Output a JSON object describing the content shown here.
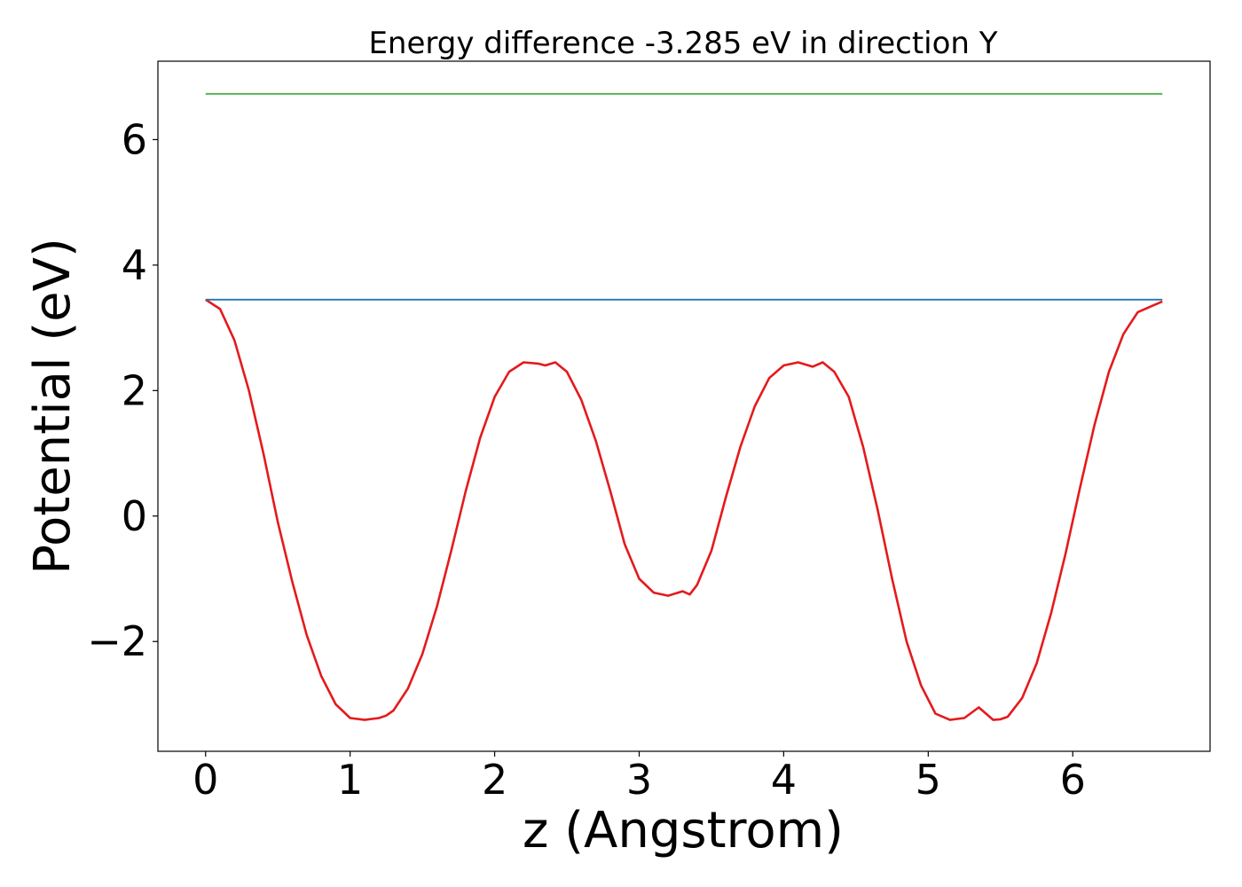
{
  "chart_data": {
    "type": "line",
    "title": "Energy difference -3.285 eV in direction Y",
    "xlabel": "z (Angstrom)",
    "ylabel": "Potential (eV)",
    "xlim": [
      -0.33,
      6.95
    ],
    "ylim": [
      -3.75,
      7.25
    ],
    "xticks": [
      0,
      1,
      2,
      3,
      4,
      5,
      6
    ],
    "yticks": [
      -2,
      0,
      2,
      4,
      6
    ],
    "xtick_labels": [
      "0",
      "1",
      "2",
      "3",
      "4",
      "5",
      "6"
    ],
    "ytick_labels": [
      "−2",
      "0",
      "2",
      "4",
      "6"
    ],
    "grid": false,
    "series": [
      {
        "color": "#e41a1c",
        "x": [
          0,
          0.1,
          0.2,
          0.3,
          0.4,
          0.5,
          0.6,
          0.7,
          0.8,
          0.9,
          1.0,
          1.1,
          1.2,
          1.25,
          1.3,
          1.4,
          1.5,
          1.6,
          1.7,
          1.8,
          1.9,
          2.0,
          2.1,
          2.2,
          2.3,
          2.35,
          2.42,
          2.5,
          2.6,
          2.7,
          2.8,
          2.9,
          3.0,
          3.1,
          3.2,
          3.3,
          3.35,
          3.4,
          3.5,
          3.6,
          3.7,
          3.8,
          3.9,
          4.0,
          4.1,
          4.2,
          4.27,
          4.35,
          4.45,
          4.55,
          4.65,
          4.75,
          4.85,
          4.95,
          5.05,
          5.15,
          5.25,
          5.35,
          5.45,
          5.5,
          5.55,
          5.65,
          5.75,
          5.85,
          5.95,
          6.05,
          6.15,
          6.25,
          6.35,
          6.45,
          6.55,
          6.62
        ],
        "y": [
          3.45,
          3.3,
          2.8,
          2.0,
          1.0,
          -0.1,
          -1.05,
          -1.9,
          -2.55,
          -3.0,
          -3.22,
          -3.25,
          -3.22,
          -3.18,
          -3.1,
          -2.75,
          -2.2,
          -1.45,
          -0.55,
          0.4,
          1.25,
          1.9,
          2.3,
          2.45,
          2.43,
          2.4,
          2.45,
          2.3,
          1.85,
          1.2,
          0.4,
          -0.45,
          -1.0,
          -1.22,
          -1.27,
          -1.2,
          -1.25,
          -1.1,
          -0.55,
          0.3,
          1.1,
          1.75,
          2.2,
          2.4,
          2.45,
          2.38,
          2.45,
          2.3,
          1.9,
          1.1,
          0.1,
          -1.0,
          -2.0,
          -2.7,
          -3.15,
          -3.25,
          -3.22,
          -3.05,
          -3.25,
          -3.24,
          -3.2,
          -2.9,
          -2.35,
          -1.55,
          -0.6,
          0.45,
          1.45,
          2.3,
          2.9,
          3.25,
          3.35,
          3.42
        ]
      },
      {
        "color": "#1f77b4",
        "x": [
          0,
          6.62
        ],
        "y": [
          3.45,
          3.45
        ]
      },
      {
        "color": "#4daf4a",
        "x": [
          0,
          6.62
        ],
        "y": [
          6.73,
          6.73
        ]
      }
    ]
  }
}
